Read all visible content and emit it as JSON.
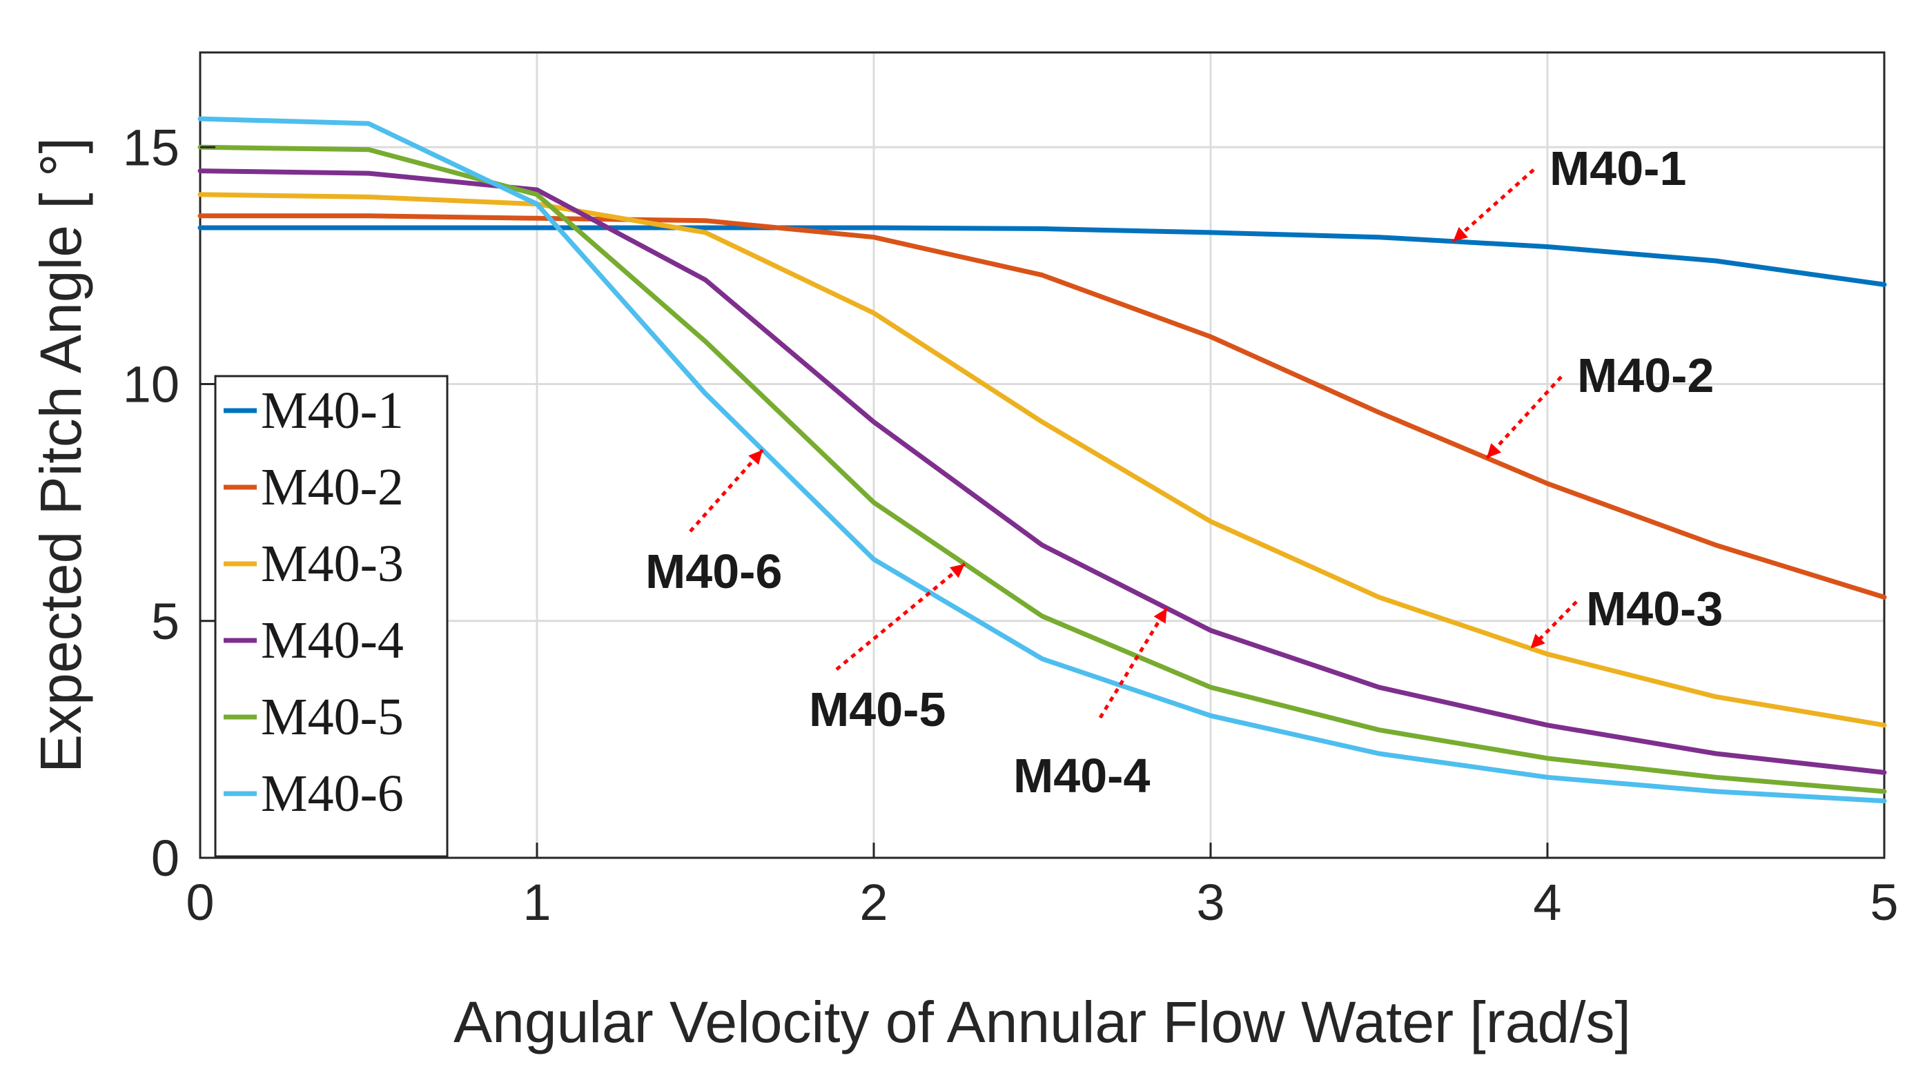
{
  "chart_data": {
    "type": "line",
    "title": "",
    "xlabel": "Angular Velocity of Annular Flow Water [rad/s]",
    "ylabel": "Expected Pitch Angle [ °]",
    "xlim": [
      0,
      5
    ],
    "ylim": [
      0,
      17
    ],
    "xticks": [
      0,
      1,
      2,
      3,
      4,
      5
    ],
    "yticks": [
      0,
      5,
      10,
      15
    ],
    "grid": true,
    "legend_position": "center-left",
    "x": [
      0,
      0.5,
      1,
      1.5,
      2,
      2.5,
      3,
      3.5,
      4,
      4.5,
      5
    ],
    "series": [
      {
        "name": "M40-1",
        "color": "#0072bd",
        "values": [
          13.3,
          13.3,
          13.3,
          13.3,
          13.3,
          13.28,
          13.2,
          13.1,
          12.9,
          12.6,
          12.1
        ]
      },
      {
        "name": "M40-2",
        "color": "#d95319",
        "values": [
          13.55,
          13.55,
          13.5,
          13.45,
          13.1,
          12.3,
          11.0,
          9.4,
          7.9,
          6.6,
          5.5
        ]
      },
      {
        "name": "M40-3",
        "color": "#edb120",
        "values": [
          14.0,
          13.95,
          13.8,
          13.2,
          11.5,
          9.2,
          7.1,
          5.5,
          4.3,
          3.4,
          2.8
        ]
      },
      {
        "name": "M40-4",
        "color": "#7e2f8e",
        "values": [
          14.5,
          14.45,
          14.1,
          12.2,
          9.2,
          6.6,
          4.8,
          3.6,
          2.8,
          2.2,
          1.8
        ]
      },
      {
        "name": "M40-5",
        "color": "#77ac30",
        "values": [
          15.0,
          14.95,
          14.0,
          10.9,
          7.5,
          5.1,
          3.6,
          2.7,
          2.1,
          1.7,
          1.4
        ]
      },
      {
        "name": "M40-6",
        "color": "#4dbeee",
        "values": [
          15.6,
          15.5,
          13.8,
          9.8,
          6.3,
          4.2,
          3.0,
          2.2,
          1.7,
          1.4,
          1.2
        ]
      }
    ],
    "annotations": [
      {
        "label": "M40-1",
        "series": "M40-1",
        "arrow_x": 3.72
      },
      {
        "label": "M40-2",
        "series": "M40-2",
        "arrow_x": 3.82
      },
      {
        "label": "M40-3",
        "series": "M40-3",
        "arrow_x": 3.95
      },
      {
        "label": "M40-4",
        "series": "M40-4",
        "arrow_x": 2.87
      },
      {
        "label": "M40-5",
        "series": "M40-5",
        "arrow_x": 2.27
      },
      {
        "label": "M40-6",
        "series": "M40-6",
        "arrow_x": 1.67
      }
    ]
  }
}
